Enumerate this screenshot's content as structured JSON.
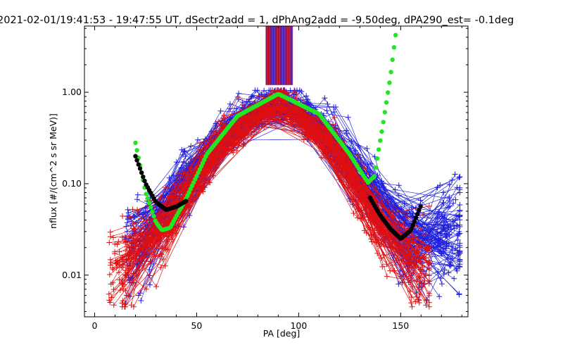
{
  "chart_data": {
    "type": "line",
    "title": "2021-02-01/19:41:53 - 19:47:55 UT, dSectr2add = 1, dPhAng2add = -9.50deg, dPA290_est=  -0.1deg",
    "xlabel": "PA [deg]",
    "ylabel": "nflux [#/(cm^2 s sr MeV)]",
    "xlim": [
      -5,
      183
    ],
    "ylim": [
      0.0035,
      5.3
    ],
    "y_scale": "log",
    "x_ticks": [
      {
        "value": 0,
        "label": "0"
      },
      {
        "value": 50,
        "label": "50"
      },
      {
        "value": 100,
        "label": "100"
      },
      {
        "value": 150,
        "label": "150"
      }
    ],
    "y_ticks": [
      {
        "value": 0.01,
        "label": "0.01"
      },
      {
        "value": 0.1,
        "label": "0.10"
      },
      {
        "value": 1.0,
        "label": "1.00"
      }
    ],
    "grid": false,
    "colors": {
      "blue": "#1f1fdd",
      "red": "#e01010",
      "green": "#22e622",
      "black": "#000000",
      "axis": "#000000"
    },
    "series": [
      {
        "color": "blue",
        "style": "line+plus",
        "count": 130,
        "x": [
          22,
          47,
          66,
          90,
          114,
          133,
          155,
          175
        ],
        "y": [
          0.02,
          0.12,
          0.4,
          0.9,
          0.4,
          0.09,
          0.02,
          0.03
        ]
      },
      {
        "color": "red",
        "style": "line+plus",
        "count": 100,
        "x": [
          14,
          38,
          63,
          90,
          117,
          140,
          160
        ],
        "y": [
          0.012,
          0.04,
          0.3,
          0.85,
          0.3,
          0.03,
          0.012
        ]
      },
      {
        "color": "green",
        "style": "thick-dots",
        "x": [
          20,
          25,
          30,
          33,
          37,
          45,
          55,
          70,
          90,
          110,
          125,
          130,
          134,
          137,
          141,
          145,
          148
        ],
        "y": [
          0.28,
          0.08,
          0.038,
          0.031,
          0.033,
          0.07,
          0.21,
          0.55,
          0.96,
          0.58,
          0.21,
          0.14,
          0.103,
          0.12,
          0.4,
          1.5,
          5.2
        ]
      },
      {
        "color": "black",
        "style": "thick-dots",
        "x": [
          20,
          25,
          30,
          35,
          40,
          45,
          135,
          140,
          145,
          150,
          155,
          160
        ],
        "y": [
          0.2,
          0.1,
          0.063,
          0.052,
          0.056,
          0.065,
          0.07,
          0.045,
          0.032,
          0.025,
          0.031,
          0.058
        ]
      }
    ],
    "vertical_lines": {
      "x_range": [
        84,
        97
      ],
      "y_from": 1.2,
      "y_to": 5.3,
      "colors": [
        "blue",
        "red"
      ]
    }
  }
}
